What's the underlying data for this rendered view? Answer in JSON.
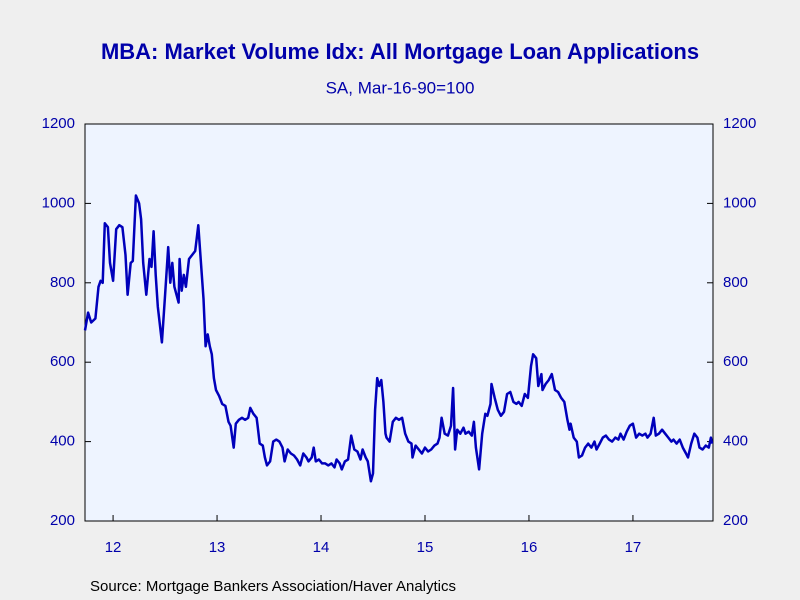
{
  "chart_data": {
    "type": "line",
    "title": "MBA: Market Volume Idx: All Mortgage Loan Applications",
    "subtitle": "SA, Mar-16-90=100",
    "source": "Source:  Mortgage Bankers Association/Haver Analytics",
    "color": "#0000bb",
    "xlim": [
      2012.23,
      2018.27
    ],
    "xticks": [
      {
        "value": 2012.5,
        "label": "12"
      },
      {
        "value": 2013.5,
        "label": "13"
      },
      {
        "value": 2014.5,
        "label": "14"
      },
      {
        "value": 2015.5,
        "label": "15"
      },
      {
        "value": 2016.5,
        "label": "16"
      },
      {
        "value": 2017.5,
        "label": "17"
      }
    ],
    "ylim": [
      200,
      1200
    ],
    "yticks": [
      200,
      400,
      600,
      800,
      1000,
      1200
    ],
    "x": [
      2012.23,
      2012.26,
      2012.29,
      2012.33,
      2012.36,
      2012.38,
      2012.4,
      2012.42,
      2012.45,
      2012.47,
      2012.5,
      2012.53,
      2012.56,
      2012.59,
      2012.62,
      2012.64,
      2012.67,
      2012.69,
      2012.72,
      2012.75,
      2012.77,
      2012.79,
      2012.82,
      2012.85,
      2012.87,
      2012.89,
      2012.91,
      2012.93,
      2012.97,
      2013.0,
      2013.03,
      2013.05,
      2013.07,
      2013.09,
      2013.11,
      2013.13,
      2013.14,
      2013.16,
      2013.18,
      2013.2,
      2013.23,
      2013.26,
      2013.29,
      2013.32,
      2013.34,
      2013.37,
      2013.39,
      2013.41,
      2013.43,
      2013.45,
      2013.47,
      2013.49,
      2013.52,
      2013.55,
      2013.58,
      2013.61,
      2013.63,
      2013.66,
      2013.68,
      2013.71,
      2013.74,
      2013.77,
      2013.8,
      2013.82,
      2013.85,
      2013.88,
      2013.89,
      2013.91,
      2013.94,
      2013.96,
      2013.98,
      2014.01,
      2014.04,
      2014.07,
      2014.1,
      2014.13,
      2014.15,
      2014.18,
      2014.21,
      2014.24,
      2014.27,
      2014.3,
      2014.33,
      2014.36,
      2014.38,
      2014.41,
      2014.43,
      2014.45,
      2014.48,
      2014.51,
      2014.54,
      2014.57,
      2014.6,
      2014.63,
      2014.65,
      2014.68,
      2014.7,
      2014.73,
      2014.76,
      2014.79,
      2014.82,
      2014.85,
      2014.88,
      2014.9,
      2014.93,
      2014.95,
      2014.98,
      2015.0,
      2015.02,
      2015.04,
      2015.06,
      2015.08,
      2015.1,
      2015.12,
      2015.13,
      2015.16,
      2015.19,
      2015.22,
      2015.25,
      2015.28,
      2015.31,
      2015.34,
      2015.37,
      2015.38,
      2015.41,
      2015.44,
      2015.47,
      2015.5,
      2015.53,
      2015.56,
      2015.59,
      2015.62,
      2015.64,
      2015.66,
      2015.69,
      2015.72,
      2015.75,
      2015.77,
      2015.79,
      2015.81,
      2015.84,
      2015.87,
      2015.89,
      2015.92,
      2015.95,
      2015.97,
      2015.99,
      2016.02,
      2016.05,
      2016.08,
      2016.1,
      2016.13,
      2016.14,
      2016.17,
      2016.2,
      2016.23,
      2016.26,
      2016.29,
      2016.32,
      2016.35,
      2016.38,
      2016.4,
      2016.43,
      2016.46,
      2016.49,
      2016.52,
      2016.54,
      2016.57,
      2016.59,
      2016.62,
      2016.63,
      2016.66,
      2016.69,
      2016.72,
      2016.75,
      2016.78,
      2016.81,
      2016.84,
      2016.87,
      2016.89,
      2016.9,
      2016.93,
      2016.96,
      2016.98,
      2017.01,
      2017.04,
      2017.07,
      2017.1,
      2017.13,
      2017.15,
      2017.18,
      2017.21,
      2017.24,
      2017.27,
      2017.3,
      2017.33,
      2017.36,
      2017.38,
      2017.41,
      2017.44,
      2017.47,
      2017.5,
      2017.53,
      2017.56,
      2017.59,
      2017.62,
      2017.64,
      2017.67,
      2017.7,
      2017.72,
      2017.75,
      2017.78,
      2017.81,
      2017.84,
      2017.87,
      2017.89,
      2017.92,
      2017.95,
      2017.98,
      2018.01,
      2018.03,
      2018.06,
      2018.09,
      2018.12,
      2018.14,
      2018.17,
      2018.2,
      2018.23,
      2018.25,
      2018.26
    ],
    "values": [
      680,
      725,
      700,
      710,
      790,
      805,
      800,
      950,
      940,
      850,
      805,
      935,
      945,
      940,
      870,
      770,
      850,
      855,
      1020,
      1000,
      960,
      850,
      770,
      860,
      840,
      930,
      820,
      740,
      650,
      770,
      890,
      800,
      850,
      790,
      770,
      750,
      860,
      780,
      820,
      790,
      860,
      870,
      880,
      945,
      870,
      760,
      640,
      670,
      640,
      620,
      560,
      530,
      515,
      495,
      490,
      450,
      440,
      385,
      445,
      455,
      460,
      455,
      460,
      485,
      470,
      460,
      440,
      395,
      390,
      360,
      340,
      350,
      400,
      405,
      400,
      385,
      350,
      380,
      370,
      365,
      355,
      340,
      370,
      360,
      350,
      360,
      385,
      350,
      355,
      345,
      345,
      340,
      345,
      335,
      355,
      345,
      330,
      350,
      355,
      415,
      380,
      375,
      355,
      380,
      360,
      350,
      300,
      320,
      480,
      560,
      540,
      555,
      500,
      420,
      410,
      400,
      450,
      460,
      455,
      460,
      420,
      400,
      395,
      360,
      390,
      380,
      370,
      385,
      375,
      380,
      390,
      395,
      410,
      460,
      420,
      415,
      440,
      535,
      380,
      430,
      420,
      435,
      420,
      425,
      415,
      450,
      385,
      330,
      420,
      470,
      465,
      495,
      545,
      510,
      480,
      465,
      475,
      520,
      525,
      500,
      495,
      500,
      490,
      520,
      510,
      590,
      620,
      610,
      540,
      570,
      530,
      545,
      555,
      570,
      530,
      525,
      510,
      500,
      455,
      430,
      445,
      410,
      400,
      360,
      365,
      385,
      395,
      385,
      400,
      380,
      395,
      410,
      415,
      405,
      400,
      410,
      405,
      420,
      405,
      425,
      440,
      445,
      410,
      420,
      415,
      420,
      410,
      420,
      460,
      415,
      420,
      430,
      420,
      410,
      400,
      405,
      395,
      405,
      385,
      370,
      360,
      395,
      420,
      410,
      385,
      380,
      390,
      385,
      410,
      395
    ]
  }
}
